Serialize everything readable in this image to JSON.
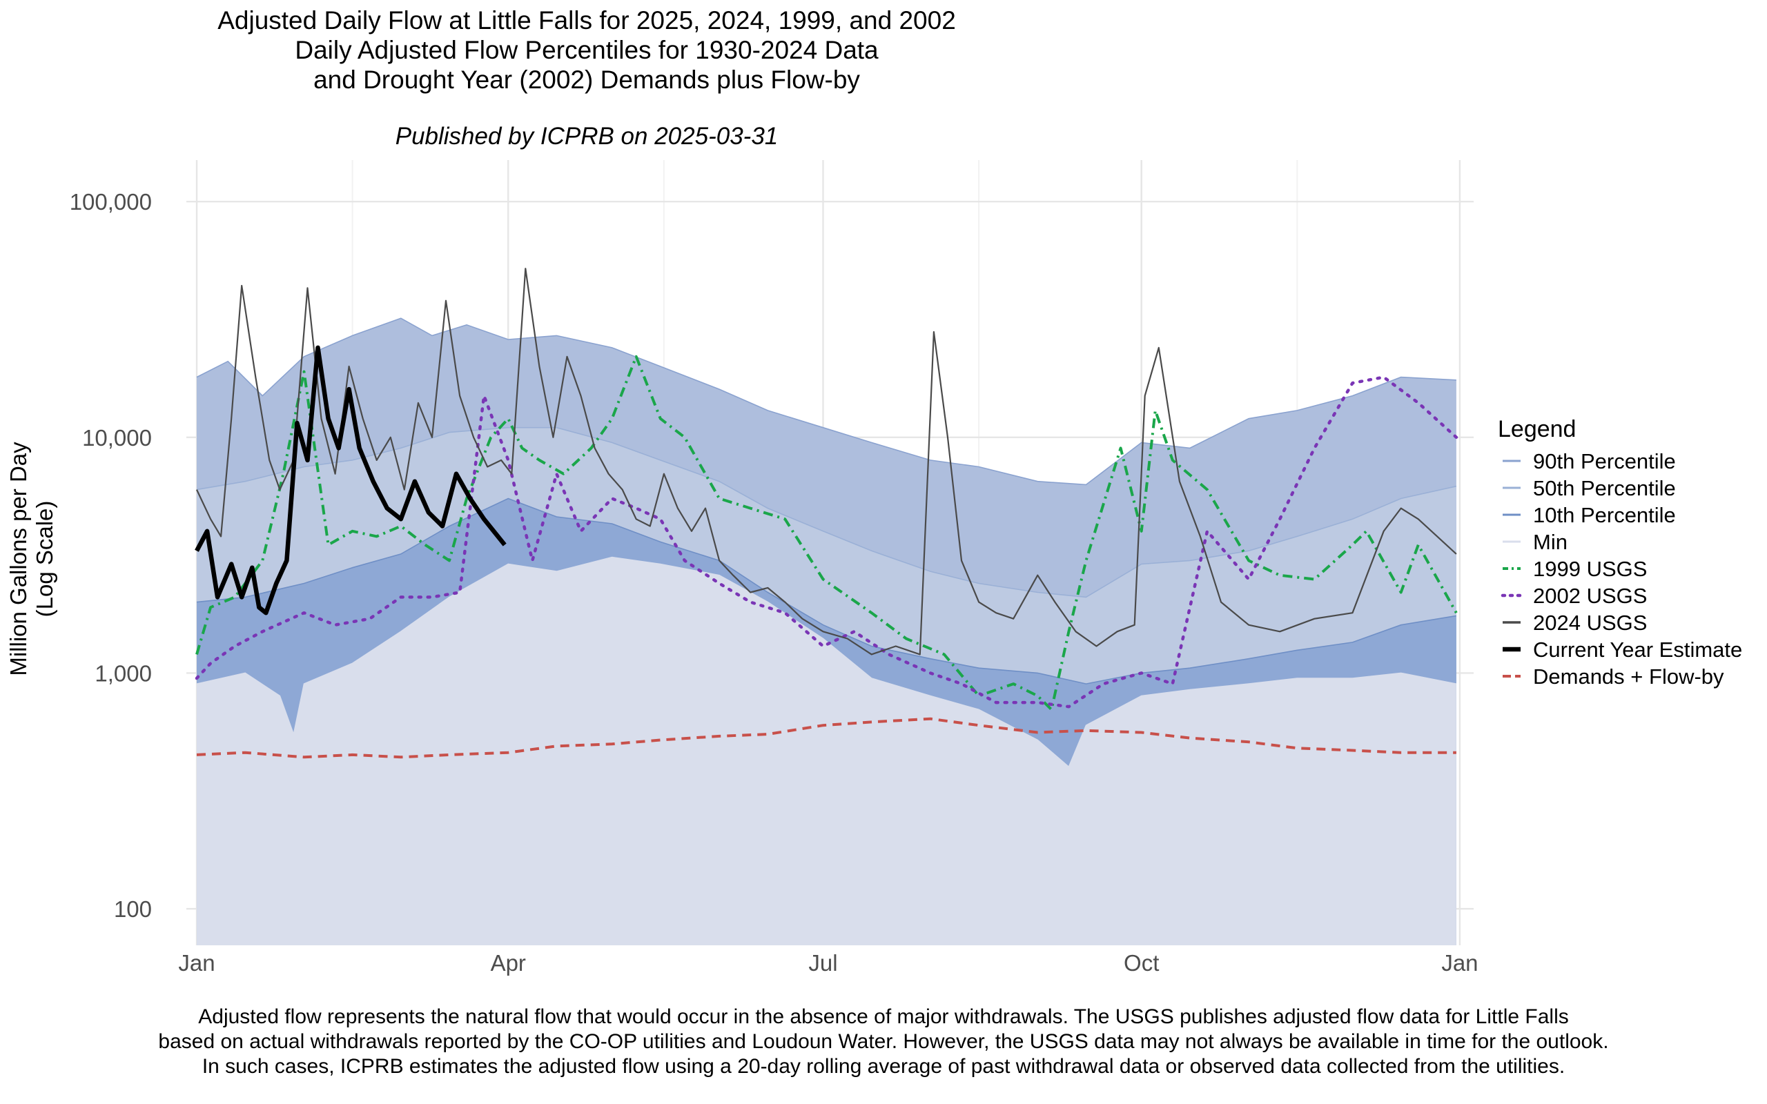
{
  "chart_data": {
    "type": "area",
    "title_lines": [
      "Adjusted Daily Flow at Little Falls for 2025, 2024, 1999, and 2002",
      "Daily Adjusted Flow Percentiles for 1930-2024 Data",
      "and Drought Year (2002) Demands plus Flow-by"
    ],
    "subtitle": "Published by ICPRB on 2025-03-31",
    "ylabel_lines": [
      "Million Gallons per Day",
      "(Log Scale)"
    ],
    "xlabel": "",
    "y_scale": "log",
    "ylim": [
      70,
      150000
    ],
    "y_ticks": [
      100,
      1000,
      10000,
      100000
    ],
    "y_tick_labels": [
      "100",
      "1,000",
      "10,000",
      "100,000"
    ],
    "xlim": [
      "2024-12-29",
      "2026-01-05"
    ],
    "x_ticks": [
      "2025-01-01",
      "2025-04-01",
      "2025-07-01",
      "2025-10-01",
      "2026-01-01"
    ],
    "x_tick_labels": [
      "Jan",
      "Apr",
      "Jul",
      "Oct",
      "Jan"
    ],
    "x_minor_ticks": [
      "2025-02-15",
      "2025-05-16",
      "2025-08-15",
      "2025-11-15"
    ],
    "grid": true,
    "legend_title": "Legend",
    "legend_position": "right",
    "series": [
      {
        "name": "90th Percentile",
        "kind": "band",
        "color": "#aebedd",
        "edge": "#8aa2cf",
        "dates": [
          "2025-01-01",
          "2025-01-10",
          "2025-01-20",
          "2025-02-01",
          "2025-02-15",
          "2025-03-01",
          "2025-03-10",
          "2025-03-20",
          "2025-04-01",
          "2025-04-15",
          "2025-05-01",
          "2025-05-15",
          "2025-06-01",
          "2025-06-15",
          "2025-07-01",
          "2025-07-15",
          "2025-08-01",
          "2025-08-15",
          "2025-09-01",
          "2025-09-15",
          "2025-10-01",
          "2025-10-15",
          "2025-11-01",
          "2025-11-15",
          "2025-12-01",
          "2025-12-15",
          "2025-12-31"
        ],
        "values": [
          18000,
          21000,
          15000,
          22000,
          27000,
          32000,
          27000,
          30000,
          26000,
          27000,
          24000,
          20000,
          16000,
          13000,
          11000,
          9500,
          8000,
          7500,
          6500,
          6300,
          9500,
          9000,
          12000,
          13000,
          15000,
          18000,
          17500
        ]
      },
      {
        "name": "50th Percentile",
        "kind": "band",
        "color": "#bdcae2",
        "edge": "#9ab0d6",
        "dates": [
          "2025-01-01",
          "2025-01-15",
          "2025-02-01",
          "2025-02-15",
          "2025-03-01",
          "2025-03-15",
          "2025-04-01",
          "2025-04-15",
          "2025-05-01",
          "2025-05-15",
          "2025-06-01",
          "2025-06-15",
          "2025-07-01",
          "2025-07-15",
          "2025-08-01",
          "2025-08-15",
          "2025-09-01",
          "2025-09-15",
          "2025-10-01",
          "2025-10-15",
          "2025-11-01",
          "2025-11-15",
          "2025-12-01",
          "2025-12-15",
          "2025-12-31"
        ],
        "values": [
          6000,
          6500,
          7500,
          8000,
          9000,
          10500,
          11000,
          11000,
          9500,
          8000,
          6500,
          5000,
          4000,
          3300,
          2700,
          2400,
          2200,
          2100,
          2900,
          3000,
          3300,
          3800,
          4500,
          5500,
          6200
        ]
      },
      {
        "name": "10th Percentile",
        "kind": "band",
        "color": "#8ea8d5",
        "edge": "#6f8fc6",
        "dates": [
          "2025-01-01",
          "2025-01-15",
          "2025-02-01",
          "2025-02-15",
          "2025-03-01",
          "2025-03-15",
          "2025-04-01",
          "2025-04-15",
          "2025-05-01",
          "2025-05-15",
          "2025-06-01",
          "2025-06-15",
          "2025-07-01",
          "2025-07-15",
          "2025-08-01",
          "2025-08-15",
          "2025-09-01",
          "2025-09-15",
          "2025-10-01",
          "2025-10-15",
          "2025-11-01",
          "2025-11-15",
          "2025-12-01",
          "2025-12-15",
          "2025-12-31"
        ],
        "values": [
          2000,
          2100,
          2400,
          2800,
          3200,
          4200,
          5500,
          4600,
          4300,
          3600,
          3000,
          2200,
          1600,
          1300,
          1150,
          1050,
          1000,
          900,
          1000,
          1050,
          1150,
          1250,
          1350,
          1600,
          1750
        ]
      },
      {
        "name": "Min",
        "kind": "band",
        "color": "#d9deec",
        "edge": "#d9deec",
        "dates": [
          "2025-01-01",
          "2025-01-15",
          "2025-01-25",
          "2025-01-29",
          "2025-02-01",
          "2025-02-15",
          "2025-03-01",
          "2025-03-15",
          "2025-04-01",
          "2025-04-15",
          "2025-05-01",
          "2025-05-15",
          "2025-06-01",
          "2025-06-15",
          "2025-07-01",
          "2025-07-15",
          "2025-08-01",
          "2025-08-15",
          "2025-09-01",
          "2025-09-10",
          "2025-09-15",
          "2025-10-01",
          "2025-10-15",
          "2025-11-01",
          "2025-11-15",
          "2025-12-01",
          "2025-12-15",
          "2025-12-31"
        ],
        "values": [
          900,
          1000,
          800,
          550,
          900,
          1100,
          1500,
          2100,
          2900,
          2700,
          3100,
          2900,
          2600,
          2000,
          1400,
          950,
          800,
          700,
          520,
          400,
          600,
          800,
          850,
          900,
          950,
          950,
          1000,
          900
        ]
      },
      {
        "name": "1999 USGS",
        "kind": "line",
        "color": "#1aa64a",
        "dash": "14 7 3 7",
        "width": 4,
        "dates": [
          "2025-01-01",
          "2025-01-05",
          "2025-01-12",
          "2025-01-20",
          "2025-01-26",
          "2025-02-01",
          "2025-02-08",
          "2025-02-15",
          "2025-02-22",
          "2025-03-01",
          "2025-03-08",
          "2025-03-15",
          "2025-03-20",
          "2025-03-27",
          "2025-04-01",
          "2025-04-05",
          "2025-04-10",
          "2025-04-17",
          "2025-04-25",
          "2025-05-01",
          "2025-05-08",
          "2025-05-15",
          "2025-05-22",
          "2025-06-01",
          "2025-06-10",
          "2025-06-20",
          "2025-07-01",
          "2025-07-15",
          "2025-07-25",
          "2025-08-05",
          "2025-08-15",
          "2025-08-25",
          "2025-09-01",
          "2025-09-05",
          "2025-09-10",
          "2025-09-15",
          "2025-09-25",
          "2025-10-01",
          "2025-10-05",
          "2025-10-10",
          "2025-10-20",
          "2025-11-01",
          "2025-11-10",
          "2025-11-20",
          "2025-12-01",
          "2025-12-05",
          "2025-12-15",
          "2025-12-20",
          "2025-12-31"
        ],
        "values": [
          1200,
          1900,
          2100,
          3000,
          7000,
          19000,
          3500,
          4000,
          3800,
          4200,
          3500,
          3000,
          5500,
          10000,
          12000,
          9000,
          8000,
          7000,
          9000,
          12000,
          22000,
          12000,
          10000,
          5500,
          5000,
          4500,
          2500,
          1800,
          1400,
          1200,
          800,
          900,
          800,
          700,
          1500,
          3000,
          9000,
          4000,
          13000,
          8000,
          6000,
          3000,
          2600,
          2500,
          3500,
          4000,
          2200,
          3500,
          1800
        ]
      },
      {
        "name": "2002 USGS",
        "kind": "line",
        "color": "#7a35b5",
        "dash": "3 10",
        "width": 4.5,
        "dates": [
          "2025-01-01",
          "2025-01-05",
          "2025-01-12",
          "2025-01-20",
          "2025-02-01",
          "2025-02-10",
          "2025-02-20",
          "2025-03-01",
          "2025-03-10",
          "2025-03-18",
          "2025-03-25",
          "2025-04-01",
          "2025-04-08",
          "2025-04-15",
          "2025-04-22",
          "2025-05-01",
          "2025-05-08",
          "2025-05-15",
          "2025-05-22",
          "2025-06-01",
          "2025-06-10",
          "2025-06-20",
          "2025-07-01",
          "2025-07-10",
          "2025-07-20",
          "2025-08-01",
          "2025-08-10",
          "2025-08-20",
          "2025-09-01",
          "2025-09-10",
          "2025-09-20",
          "2025-10-01",
          "2025-10-10",
          "2025-10-20",
          "2025-11-01",
          "2025-11-10",
          "2025-11-20",
          "2025-12-01",
          "2025-12-10",
          "2025-12-20",
          "2025-12-31"
        ],
        "values": [
          950,
          1100,
          1300,
          1500,
          1800,
          1600,
          1700,
          2100,
          2100,
          2200,
          15000,
          8000,
          3000,
          7000,
          4000,
          5500,
          5000,
          4500,
          3000,
          2400,
          2000,
          1800,
          1300,
          1500,
          1200,
          1000,
          900,
          750,
          750,
          720,
          900,
          1000,
          900,
          4000,
          2500,
          4500,
          9000,
          17000,
          18000,
          14000,
          10000
        ]
      },
      {
        "name": "2024 USGS",
        "kind": "line",
        "color": "#4a4a4a",
        "dash": "",
        "width": 2.2,
        "dates": [
          "2025-01-01",
          "2025-01-05",
          "2025-01-08",
          "2025-01-11",
          "2025-01-14",
          "2025-01-18",
          "2025-01-22",
          "2025-01-25",
          "2025-01-29",
          "2025-02-02",
          "2025-02-06",
          "2025-02-10",
          "2025-02-14",
          "2025-02-18",
          "2025-02-22",
          "2025-02-26",
          "2025-03-02",
          "2025-03-06",
          "2025-03-10",
          "2025-03-14",
          "2025-03-18",
          "2025-03-22",
          "2025-03-26",
          "2025-03-30",
          "2025-04-02",
          "2025-04-06",
          "2025-04-10",
          "2025-04-14",
          "2025-04-18",
          "2025-04-22",
          "2025-04-26",
          "2025-04-30",
          "2025-05-04",
          "2025-05-08",
          "2025-05-12",
          "2025-05-16",
          "2025-05-20",
          "2025-05-24",
          "2025-05-28",
          "2025-06-01",
          "2025-06-05",
          "2025-06-10",
          "2025-06-15",
          "2025-06-20",
          "2025-06-25",
          "2025-07-01",
          "2025-07-08",
          "2025-07-15",
          "2025-07-22",
          "2025-07-29",
          "2025-08-02",
          "2025-08-06",
          "2025-08-10",
          "2025-08-15",
          "2025-08-20",
          "2025-08-25",
          "2025-09-01",
          "2025-09-06",
          "2025-09-12",
          "2025-09-18",
          "2025-09-24",
          "2025-09-29",
          "2025-10-02",
          "2025-10-06",
          "2025-10-12",
          "2025-10-18",
          "2025-10-24",
          "2025-11-01",
          "2025-11-10",
          "2025-11-20",
          "2025-12-01",
          "2025-12-10",
          "2025-12-15",
          "2025-12-20",
          "2025-12-31"
        ],
        "values": [
          6000,
          4500,
          3800,
          12000,
          44000,
          18000,
          8000,
          6000,
          8000,
          43000,
          12000,
          7000,
          20000,
          12000,
          8000,
          10000,
          6000,
          14000,
          10000,
          38000,
          15000,
          10000,
          7500,
          8000,
          7000,
          52000,
          20000,
          10000,
          22000,
          15000,
          9000,
          7000,
          6000,
          4500,
          4200,
          7000,
          5000,
          4000,
          5000,
          3000,
          2600,
          2200,
          2300,
          2000,
          1700,
          1500,
          1400,
          1200,
          1300,
          1200,
          28000,
          10000,
          3000,
          2000,
          1800,
          1700,
          2600,
          2000,
          1500,
          1300,
          1500,
          1600,
          15000,
          24000,
          6500,
          3800,
          2000,
          1600,
          1500,
          1700,
          1800,
          4000,
          5000,
          4500,
          3200
        ]
      },
      {
        "name": "Current Year Estimate",
        "kind": "line",
        "color": "#000000",
        "dash": "",
        "width": 6.5,
        "dates": [
          "2025-01-01",
          "2025-01-04",
          "2025-01-07",
          "2025-01-11",
          "2025-01-14",
          "2025-01-17",
          "2025-01-19",
          "2025-01-21",
          "2025-01-24",
          "2025-01-27",
          "2025-01-30",
          "2025-02-02",
          "2025-02-05",
          "2025-02-08",
          "2025-02-11",
          "2025-02-14",
          "2025-02-17",
          "2025-02-21",
          "2025-02-25",
          "2025-03-01",
          "2025-03-05",
          "2025-03-09",
          "2025-03-13",
          "2025-03-17",
          "2025-03-21",
          "2025-03-25",
          "2025-03-31"
        ],
        "values": [
          3300,
          4000,
          2100,
          2900,
          2100,
          2800,
          1900,
          1800,
          2400,
          3000,
          11500,
          8000,
          24000,
          12000,
          9000,
          16000,
          9000,
          6500,
          5000,
          4500,
          6500,
          4800,
          4200,
          7000,
          5500,
          4500,
          3500
        ]
      },
      {
        "name": "Demands + Flow-by",
        "kind": "line",
        "color": "#c8504a",
        "dash": "13 9",
        "width": 4,
        "dates": [
          "2025-01-01",
          "2025-01-15",
          "2025-02-01",
          "2025-02-15",
          "2025-03-01",
          "2025-03-15",
          "2025-04-01",
          "2025-04-15",
          "2025-05-01",
          "2025-05-15",
          "2025-06-01",
          "2025-06-15",
          "2025-07-01",
          "2025-07-15",
          "2025-08-01",
          "2025-08-15",
          "2025-09-01",
          "2025-09-15",
          "2025-10-01",
          "2025-10-15",
          "2025-11-01",
          "2025-11-15",
          "2025-12-01",
          "2025-12-15",
          "2025-12-31"
        ],
        "values": [
          450,
          460,
          440,
          450,
          440,
          450,
          460,
          490,
          500,
          520,
          540,
          550,
          600,
          620,
          640,
          600,
          560,
          570,
          560,
          530,
          510,
          480,
          470,
          460,
          460
        ]
      }
    ]
  },
  "caption_lines": [
    "Adjusted flow represents the natural flow that would occur in the absence of major withdrawals. The USGS publishes adjusted flow data for Little Falls",
    "based on actual withdrawals reported by the CO-OP utilities and Loudoun Water. However, the USGS data may not always be available in time for the outlook.",
    "In such cases, ICPRB estimates the adjusted flow using a 20-day rolling average of past withdrawal data or observed data collected from the utilities."
  ]
}
